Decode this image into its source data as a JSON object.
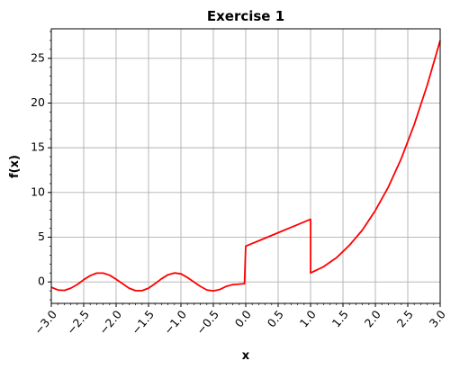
{
  "chart_data": {
    "type": "line",
    "title": "Exercise 1",
    "xlabel": "x",
    "ylabel": "f(x)",
    "xlim": [
      -3.0,
      3.0
    ],
    "ylim": [
      -2.4,
      28.3
    ],
    "grid": true,
    "x_ticks": [
      -3.0,
      -2.5,
      -2.0,
      -1.5,
      -1.0,
      -0.5,
      0.0,
      0.5,
      1.0,
      1.5,
      2.0,
      2.5,
      3.0
    ],
    "x_tick_labels": [
      "−3.0",
      "−2.5",
      "−2.0",
      "−1.5",
      "−1.0",
      "−0.5",
      "0.0",
      "0.5",
      "1.0",
      "1.5",
      "2.0",
      "2.5",
      "3.0"
    ],
    "y_ticks": [
      0,
      5,
      10,
      15,
      20,
      25
    ],
    "y_tick_labels": [
      "0",
      "5",
      "10",
      "15",
      "20",
      "25"
    ],
    "series": [
      {
        "color": "#ff0000",
        "segments": [
          {
            "x": [
              -3.0,
              -2.9,
              -2.8,
              -2.7,
              -2.6,
              -2.5,
              -2.4,
              -2.3,
              -2.2,
              -2.1,
              -2.0,
              -1.9,
              -1.8,
              -1.7,
              -1.6,
              -1.5,
              -1.4,
              -1.3,
              -1.2,
              -1.1,
              -1.0,
              -0.9,
              -0.8,
              -0.7,
              -0.6,
              -0.5,
              -0.4,
              -0.3,
              -0.2,
              -0.1,
              -0.02
            ],
            "y": [
              -0.6,
              -0.9,
              -0.95,
              -0.7,
              -0.3,
              0.25,
              0.7,
              0.98,
              0.98,
              0.75,
              0.3,
              -0.2,
              -0.7,
              -0.98,
              -0.98,
              -0.7,
              -0.2,
              0.35,
              0.8,
              1.0,
              0.9,
              0.5,
              0.0,
              -0.5,
              -0.9,
              -1.0,
              -0.85,
              -0.5,
              -0.3,
              -0.25,
              -0.2
            ]
          },
          {
            "x": [
              0.0,
              0.1,
              0.2,
              0.3,
              0.4,
              0.5,
              0.6,
              0.7,
              0.8,
              0.9,
              1.0
            ],
            "y": [
              4.0,
              4.3,
              4.6,
              4.9,
              5.2,
              5.5,
              5.8,
              6.1,
              6.4,
              6.7,
              7.0
            ]
          },
          {
            "x": [
              1.0,
              1.2,
              1.4,
              1.6,
              1.8,
              2.0,
              2.2,
              2.4,
              2.6,
              2.8,
              3.0
            ],
            "y": [
              1.0,
              1.7,
              2.7,
              4.1,
              5.8,
              8.0,
              10.6,
              13.8,
              17.6,
              22.0,
              27.0
            ]
          }
        ]
      }
    ]
  }
}
